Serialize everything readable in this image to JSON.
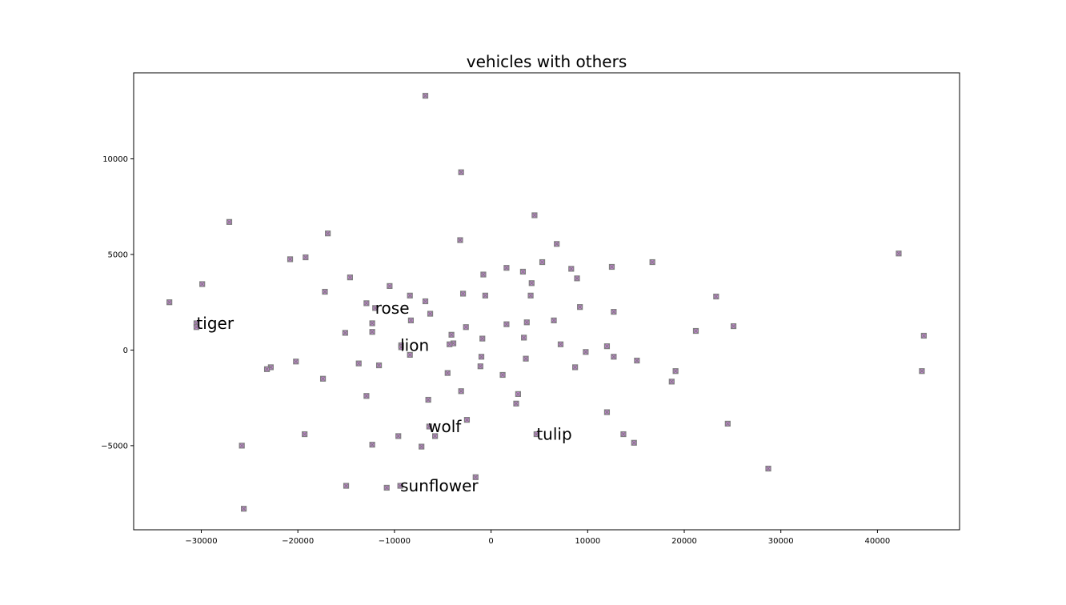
{
  "chart_data": {
    "type": "scatter",
    "title": "vehicles with others",
    "xlabel": "",
    "ylabel": "",
    "xlim": [
      -37000,
      48500
    ],
    "ylim": [
      -9400,
      14500
    ],
    "x_ticks": [
      -30000,
      -20000,
      -10000,
      0,
      10000,
      20000,
      30000,
      40000
    ],
    "x_tick_labels": [
      "−30000",
      "−20000",
      "−10000",
      "0",
      "10000",
      "20000",
      "30000",
      "40000"
    ],
    "y_ticks": [
      -5000,
      0,
      5000,
      10000
    ],
    "y_tick_labels": [
      "−5000",
      "0",
      "5000",
      "10000"
    ],
    "grid": false,
    "marker": {
      "shape": "square-with-x",
      "face_color": "#c77fd6",
      "edge_color": "#7f7f7f"
    },
    "points": [
      {
        "x": -6800,
        "y": 13300
      },
      {
        "x": -3100,
        "y": 9300
      },
      {
        "x": 4500,
        "y": 7050
      },
      {
        "x": -27100,
        "y": 6700
      },
      {
        "x": -16900,
        "y": 6100
      },
      {
        "x": -3200,
        "y": 5750
      },
      {
        "x": 6800,
        "y": 5550
      },
      {
        "x": -19200,
        "y": 4850
      },
      {
        "x": -20800,
        "y": 4750
      },
      {
        "x": 42200,
        "y": 5050
      },
      {
        "x": 16700,
        "y": 4600
      },
      {
        "x": 5300,
        "y": 4600
      },
      {
        "x": 1600,
        "y": 4300
      },
      {
        "x": 8300,
        "y": 4250
      },
      {
        "x": 12500,
        "y": 4350
      },
      {
        "x": 3300,
        "y": 4100
      },
      {
        "x": -800,
        "y": 3950
      },
      {
        "x": -14600,
        "y": 3800
      },
      {
        "x": 8900,
        "y": 3750
      },
      {
        "x": 4200,
        "y": 3500
      },
      {
        "x": -29900,
        "y": 3450
      },
      {
        "x": -10500,
        "y": 3350
      },
      {
        "x": -17200,
        "y": 3050
      },
      {
        "x": -2900,
        "y": 2950
      },
      {
        "x": -600,
        "y": 2850
      },
      {
        "x": 4100,
        "y": 2850
      },
      {
        "x": -8400,
        "y": 2850
      },
      {
        "x": 23300,
        "y": 2800
      },
      {
        "x": -6800,
        "y": 2550
      },
      {
        "x": -12900,
        "y": 2450
      },
      {
        "x": -33300,
        "y": 2500
      },
      {
        "x": 9200,
        "y": 2250
      },
      {
        "x": -12000,
        "y": 2200
      },
      {
        "x": 12700,
        "y": 2000
      },
      {
        "x": -6300,
        "y": 1900
      },
      {
        "x": -30500,
        "y": 1400
      },
      {
        "x": -30500,
        "y": 1200
      },
      {
        "x": -8300,
        "y": 1550
      },
      {
        "x": 6500,
        "y": 1550
      },
      {
        "x": 3700,
        "y": 1450
      },
      {
        "x": -12300,
        "y": 1400
      },
      {
        "x": 1600,
        "y": 1350
      },
      {
        "x": 25100,
        "y": 1250
      },
      {
        "x": -2600,
        "y": 1200
      },
      {
        "x": 21200,
        "y": 1000
      },
      {
        "x": -12300,
        "y": 950
      },
      {
        "x": -15100,
        "y": 900
      },
      {
        "x": -4100,
        "y": 800
      },
      {
        "x": 44800,
        "y": 750
      },
      {
        "x": 3400,
        "y": 650
      },
      {
        "x": -900,
        "y": 600
      },
      {
        "x": -3900,
        "y": 350
      },
      {
        "x": -4300,
        "y": 300
      },
      {
        "x": 7200,
        "y": 300
      },
      {
        "x": -9300,
        "y": 250
      },
      {
        "x": -9300,
        "y": 150
      },
      {
        "x": 12000,
        "y": 200
      },
      {
        "x": 9800,
        "y": -100
      },
      {
        "x": -8400,
        "y": -250
      },
      {
        "x": -1000,
        "y": -350
      },
      {
        "x": 3600,
        "y": -450
      },
      {
        "x": 12700,
        "y": -350
      },
      {
        "x": 15100,
        "y": -550
      },
      {
        "x": -20200,
        "y": -600
      },
      {
        "x": -13700,
        "y": -700
      },
      {
        "x": -11600,
        "y": -800
      },
      {
        "x": -1100,
        "y": -850
      },
      {
        "x": 8700,
        "y": -900
      },
      {
        "x": -22800,
        "y": -900
      },
      {
        "x": -23200,
        "y": -1000
      },
      {
        "x": 19100,
        "y": -1100
      },
      {
        "x": 44600,
        "y": -1100
      },
      {
        "x": -4500,
        "y": -1200
      },
      {
        "x": 1200,
        "y": -1300
      },
      {
        "x": -17400,
        "y": -1500
      },
      {
        "x": 18700,
        "y": -1650
      },
      {
        "x": -3100,
        "y": -2150
      },
      {
        "x": 2800,
        "y": -2300
      },
      {
        "x": -12900,
        "y": -2400
      },
      {
        "x": -6500,
        "y": -2600
      },
      {
        "x": 2600,
        "y": -2800
      },
      {
        "x": 12000,
        "y": -3250
      },
      {
        "x": -2500,
        "y": -3650
      },
      {
        "x": 24500,
        "y": -3850
      },
      {
        "x": -6400,
        "y": -4000
      },
      {
        "x": -19300,
        "y": -4400
      },
      {
        "x": -9600,
        "y": -4500
      },
      {
        "x": -5800,
        "y": -4500
      },
      {
        "x": 4700,
        "y": -4400
      },
      {
        "x": 13700,
        "y": -4400
      },
      {
        "x": 14800,
        "y": -4850
      },
      {
        "x": -12300,
        "y": -4950
      },
      {
        "x": -25800,
        "y": -5000
      },
      {
        "x": -7200,
        "y": -5050
      },
      {
        "x": 28700,
        "y": -6200
      },
      {
        "x": -1600,
        "y": -6650
      },
      {
        "x": -15000,
        "y": -7100
      },
      {
        "x": -9400,
        "y": -7100
      },
      {
        "x": -10800,
        "y": -7200
      },
      {
        "x": -25600,
        "y": -8300
      }
    ],
    "annotations": [
      {
        "text": "tiger",
        "x": -30500,
        "y": 1400
      },
      {
        "text": "rose",
        "x": -12000,
        "y": 2200
      },
      {
        "text": "lion",
        "x": -9400,
        "y": 250
      },
      {
        "text": "wolf",
        "x": -6500,
        "y": -4000
      },
      {
        "text": "tulip",
        "x": 4700,
        "y": -4400
      },
      {
        "text": "sunflower",
        "x": -9400,
        "y": -7100
      }
    ]
  }
}
